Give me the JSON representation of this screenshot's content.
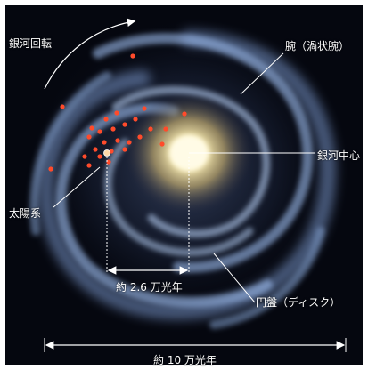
{
  "labels": {
    "galactic_rotation": "銀河回転",
    "arm": "腕（渦状腕）",
    "galactic_center": "銀河中心",
    "solar_system": "太陽系",
    "sun_distance": "約 2.6 万光年",
    "disk": "円盤（ディスク）",
    "diameter": "約 10 万光年"
  },
  "colors": {
    "space_background": "#05070f",
    "arm_blue": "#8fb3e6",
    "core_yellow": "#f4e7a8",
    "star_marker": "#ff4b2b",
    "annotation": "#ffffff"
  }
}
